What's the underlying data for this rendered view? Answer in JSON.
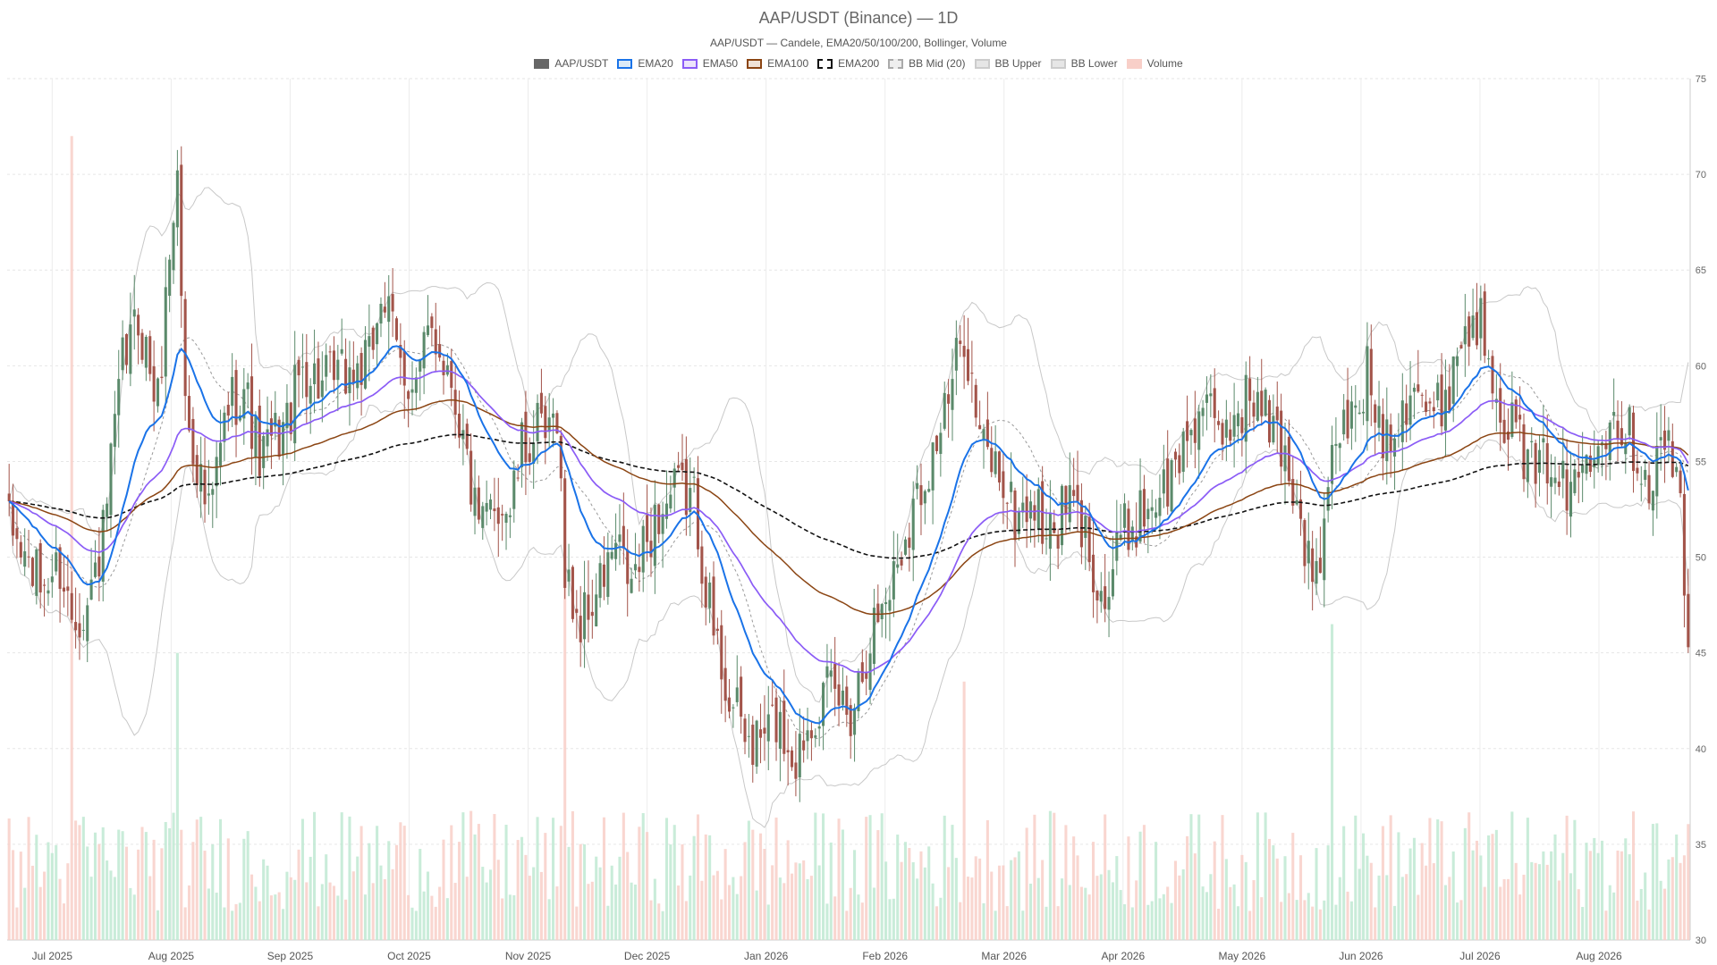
{
  "chart_data": {
    "type": "candlestick",
    "title": "AAP/USDT (Binance) — 1D",
    "subtitle": "AAP/USDT — Candele, EMA20/50/100/200, Bollinger, Volume",
    "ylim": [
      30,
      75
    ],
    "y_ticks": [
      "30",
      "35",
      "40",
      "45",
      "50",
      "55",
      "60",
      "65",
      "70",
      "75"
    ],
    "x_ticks": [
      "Jul 2025",
      "Aug 2025",
      "Sep 2025",
      "Oct 2025",
      "Nov 2025",
      "Dec 2025",
      "Jan 2026",
      "Feb 2026",
      "Mar 2026",
      "Apr 2026",
      "May 2026",
      "Jun 2026",
      "Jul 2026",
      "Aug 2026"
    ],
    "legend": [
      {
        "name": "AAP/USDT",
        "fill": "#666666",
        "border": "#666666",
        "dash": false
      },
      {
        "name": "EMA20",
        "fill": "#dbeaf7",
        "border": "#1a73e8",
        "dash": false
      },
      {
        "name": "EMA50",
        "fill": "#ece3fb",
        "border": "#8b5cf6",
        "dash": false
      },
      {
        "name": "EMA100",
        "fill": "#f0e2d6",
        "border": "#8b4513",
        "dash": false
      },
      {
        "name": "EMA200",
        "fill": "#ffffff",
        "border": "#111111",
        "dash": true
      },
      {
        "name": "BB Mid (20)",
        "fill": "#eeeeee",
        "border": "#aaaaaa",
        "dash": true
      },
      {
        "name": "BB Upper",
        "fill": "#e6e6e6",
        "border": "#cccccc",
        "dash": false
      },
      {
        "name": "BB Lower",
        "fill": "#e6e6e6",
        "border": "#cccccc",
        "dash": false
      },
      {
        "name": "Volume",
        "fill": "#f8cfc8",
        "border": "#f8cfc8",
        "dash": false
      }
    ],
    "colors": {
      "up": "#5b8a6b",
      "down": "#a3544a",
      "vol_up": "#bfe9d2",
      "vol_down": "#f8cfc8",
      "ema20": "#1a73e8",
      "ema50": "#8b5cf6",
      "ema100": "#8b4513",
      "ema200": "#111111",
      "bb_mid": "#999999",
      "bb_band": "#c8c8c8"
    },
    "candle_count": 430,
    "anchors": [
      [
        0,
        51.5
      ],
      [
        8,
        48.5
      ],
      [
        13,
        49.5
      ],
      [
        16,
        47.0
      ],
      [
        20,
        47.5
      ],
      [
        24,
        51.0
      ],
      [
        29,
        60.0
      ],
      [
        33,
        62.5
      ],
      [
        38,
        58.0
      ],
      [
        41,
        66.0
      ],
      [
        43,
        70.0
      ],
      [
        45,
        58.0
      ],
      [
        48,
        55.0
      ],
      [
        51,
        52.0
      ],
      [
        56,
        58.0
      ],
      [
        60,
        59.0
      ],
      [
        64,
        55.0
      ],
      [
        67,
        56.0
      ],
      [
        71,
        57.0
      ],
      [
        75,
        60.0
      ],
      [
        80,
        59.0
      ],
      [
        86,
        59.5
      ],
      [
        92,
        60.0
      ],
      [
        95,
        64.0
      ],
      [
        100,
        60.0
      ],
      [
        104,
        59.0
      ],
      [
        108,
        62.0
      ],
      [
        113,
        59.5
      ],
      [
        117,
        55.0
      ],
      [
        120,
        51.0
      ],
      [
        124,
        53.0
      ],
      [
        128,
        52.5
      ],
      [
        131,
        55.5
      ],
      [
        135,
        56.5
      ],
      [
        138,
        56.0
      ],
      [
        140,
        58.0
      ],
      [
        142,
        49.0
      ],
      [
        146,
        46.5
      ],
      [
        150,
        48.0
      ],
      [
        155,
        50.5
      ],
      [
        159,
        48.5
      ],
      [
        165,
        52.0
      ],
      [
        171,
        53.5
      ],
      [
        175,
        53.0
      ],
      [
        180,
        46.0
      ],
      [
        185,
        42.0
      ],
      [
        190,
        40.0
      ],
      [
        196,
        41.5
      ],
      [
        201,
        39.5
      ],
      [
        205,
        42.0
      ],
      [
        210,
        43.0
      ],
      [
        215,
        42.0
      ],
      [
        220,
        46.0
      ],
      [
        225,
        48.5
      ],
      [
        230,
        52.0
      ],
      [
        235,
        55.0
      ],
      [
        240,
        58.0
      ],
      [
        244,
        62.0
      ],
      [
        248,
        56.0
      ],
      [
        253,
        54.5
      ],
      [
        257,
        52.0
      ],
      [
        261,
        53.0
      ],
      [
        266,
        51.0
      ],
      [
        271,
        53.0
      ],
      [
        276,
        50.5
      ],
      [
        280,
        47.5
      ],
      [
        284,
        51.0
      ],
      [
        288,
        52.0
      ],
      [
        292,
        53.0
      ],
      [
        297,
        54.0
      ],
      [
        301,
        56.5
      ],
      [
        305,
        58.0
      ],
      [
        309,
        56.0
      ],
      [
        313,
        57.5
      ],
      [
        317,
        58.5
      ],
      [
        322,
        57.0
      ],
      [
        326,
        55.5
      ],
      [
        330,
        52.0
      ],
      [
        333,
        48.5
      ],
      [
        336,
        51.0
      ],
      [
        339,
        56.5
      ],
      [
        343,
        57.0
      ],
      [
        347,
        59.5
      ],
      [
        351,
        56.5
      ],
      [
        355,
        57.5
      ],
      [
        359,
        59.5
      ],
      [
        363,
        57.0
      ],
      [
        367,
        58.5
      ],
      [
        371,
        61.5
      ],
      [
        375,
        62.5
      ],
      [
        378,
        61.0
      ],
      [
        382,
        57.5
      ],
      [
        386,
        56.0
      ],
      [
        390,
        54.0
      ],
      [
        394,
        55.5
      ],
      [
        398,
        53.0
      ],
      [
        402,
        55.0
      ],
      [
        406,
        57.0
      ],
      [
        411,
        57.5
      ],
      [
        415,
        56.0
      ],
      [
        419,
        54.0
      ],
      [
        424,
        56.5
      ],
      [
        427,
        52.0
      ],
      [
        429,
        45.0
      ]
    ],
    "spikes": [
      {
        "i": 16,
        "vol": 2.8
      },
      {
        "i": 43,
        "vol": 1.0
      },
      {
        "i": 142,
        "vol": 1.6
      },
      {
        "i": 244,
        "vol": 0.9
      },
      {
        "i": 338,
        "vol": 1.1
      }
    ]
  }
}
